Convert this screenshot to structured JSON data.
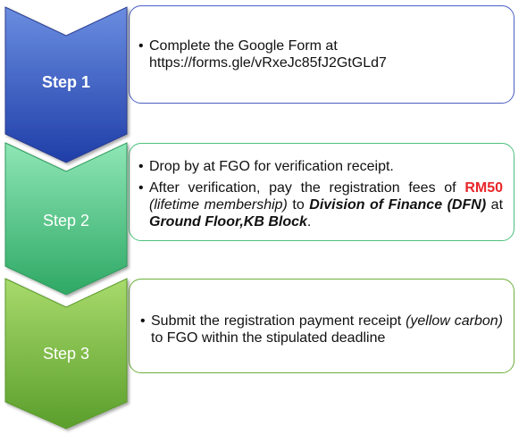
{
  "steps": [
    {
      "label": "Step 1",
      "color_top": "#6a8de0",
      "color_bottom": "#1f3ea8"
    },
    {
      "label": "Step 2",
      "color_top": "#7ee0aa",
      "color_bottom": "#2ea864"
    },
    {
      "label": "Step 3",
      "color_top": "#a6d86a",
      "color_bottom": "#5a9e2c"
    }
  ],
  "box1": {
    "line1": "Complete the Google Form at",
    "line2": "https://forms.gle/vRxeJc85fJ2GtGLd7"
  },
  "box2": {
    "item1": "Drop by at FGO for verification receipt.",
    "item2_a": "After verification, pay the registration fees of ",
    "item2_rm": "RM50",
    "item2_b": "(lifetime membership)",
    "item2_c": " to ",
    "item2_d": "Division of Finance (DFN)",
    "item2_e": " at ",
    "item2_f": "Ground Floor,KB Block",
    "item2_g": "."
  },
  "box3": {
    "item1_a": "Submit the registration payment receipt ",
    "item1_b": "(yellow carbon)",
    "item1_c": " to FGO within the stipulated deadline"
  }
}
